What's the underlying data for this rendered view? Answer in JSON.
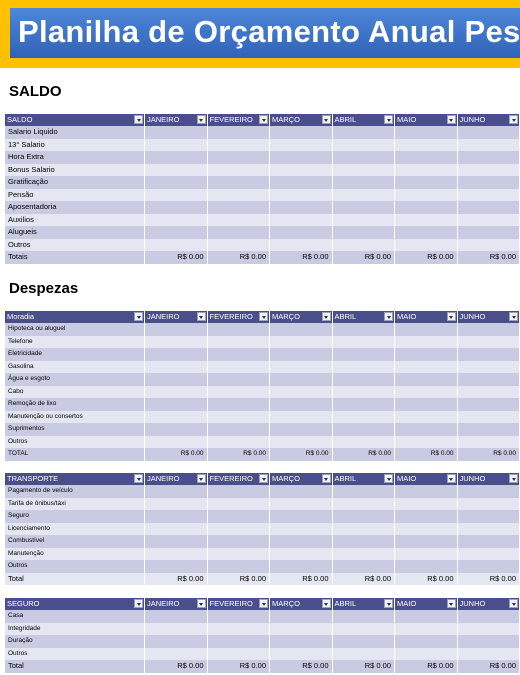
{
  "banner": {
    "title": "Planilha de Orçamento Anual Pessoal"
  },
  "months": [
    "JANEIRO",
    "FEVEREIRO",
    "MARÇO",
    "ABRIL",
    "MAIO",
    "JUNHO"
  ],
  "total_value": "R$ 0.00",
  "saldo": {
    "title": "SALDO",
    "header": "SALDO",
    "rows": [
      "Salario Liquido",
      "13° Salario",
      "Hora Extra",
      "Bonus Salario",
      "Gratificação",
      "Pensão",
      "Aposentadoria",
      "Auxilios",
      "Alugueis",
      "Outros"
    ],
    "total_label": "Totais"
  },
  "despezas": {
    "title": "Despezas",
    "moradia": {
      "header": "Moradia",
      "rows": [
        "Hipoteca ou aluguel",
        "Telefone",
        "Eletricidade",
        "Gasolina",
        "Água e esgoto",
        "Cabo",
        "Remoção de lixo",
        "Manutenção ou consertos",
        "Suprimentos",
        "Outros"
      ],
      "total_label": "TOTAL"
    },
    "transporte": {
      "header": "TRANSPORTE",
      "rows": [
        "Pagamento de veículo",
        "Tarifa de ônibus/táxi",
        "Seguro",
        "Licenciamento",
        "Combustível",
        "Manutenção",
        "Outros"
      ],
      "total_label": "Total"
    },
    "seguro": {
      "header": "SEGURO",
      "rows": [
        "Casa",
        "Integridade",
        "Duração",
        "Outros"
      ],
      "total_label": "Total"
    }
  }
}
